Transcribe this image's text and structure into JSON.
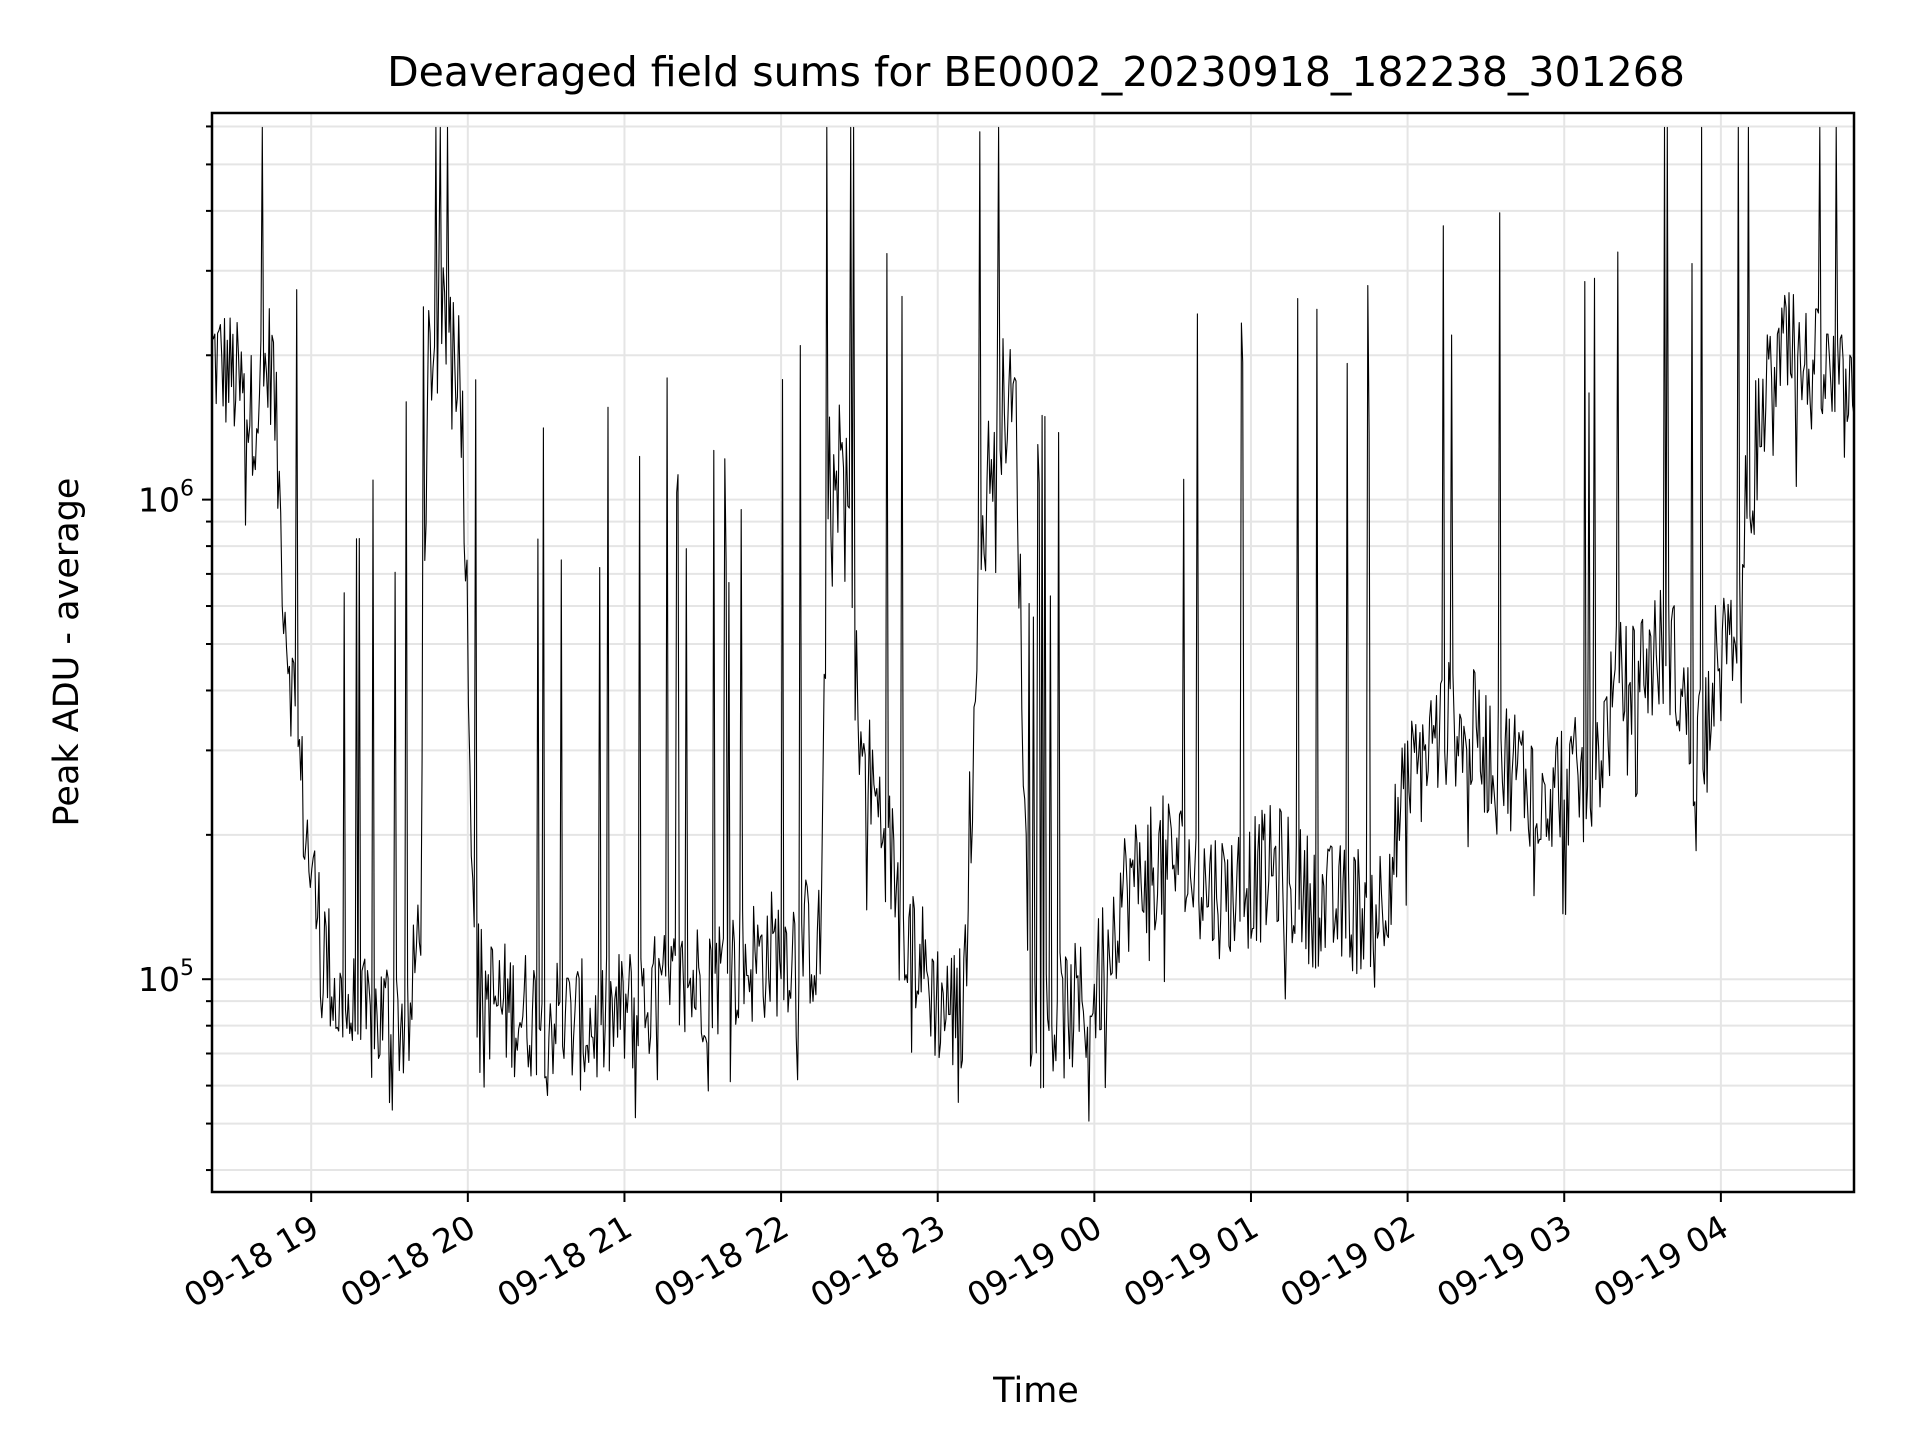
{
  "chart_data": {
    "type": "line",
    "title": "Deaveraged field sums for BE0002_20230918_182238_301268",
    "xlabel": "Time",
    "ylabel": "Peak ADU - average",
    "yscale": "log",
    "grid": true,
    "legend": "none",
    "line_color": "#000000",
    "xlim": [
      "2023-09-18 18:22",
      "2023-09-19 04:51"
    ],
    "ylim": [
      36000,
      6400000
    ],
    "x_ticks": [
      {
        "value": "2023-09-18 19:00",
        "label": "09-18 19"
      },
      {
        "value": "2023-09-18 20:00",
        "label": "09-18 20"
      },
      {
        "value": "2023-09-18 21:00",
        "label": "09-18 21"
      },
      {
        "value": "2023-09-18 22:00",
        "label": "09-18 22"
      },
      {
        "value": "2023-09-18 23:00",
        "label": "09-18 23"
      },
      {
        "value": "2023-09-19 00:00",
        "label": "09-19 00"
      },
      {
        "value": "2023-09-19 01:00",
        "label": "09-19 01"
      },
      {
        "value": "2023-09-19 02:00",
        "label": "09-19 02"
      },
      {
        "value": "2023-09-19 03:00",
        "label": "09-19 03"
      },
      {
        "value": "2023-09-19 04:00",
        "label": "09-19 04"
      }
    ],
    "y_ticks": [
      {
        "value": 100000,
        "base": "10",
        "exp": "5"
      },
      {
        "value": 1000000,
        "base": "10",
        "exp": "6"
      }
    ],
    "series": [
      {
        "name": "",
        "x": [
          "2023-09-18 18:22",
          "2023-09-18 18:30",
          "2023-09-18 18:37",
          "2023-09-18 18:45",
          "2023-09-18 18:50",
          "2023-09-18 18:55",
          "2023-09-18 18:58",
          "2023-09-18 19:03",
          "2023-09-18 19:10",
          "2023-09-18 19:20",
          "2023-09-18 19:30",
          "2023-09-18 19:38",
          "2023-09-18 19:42",
          "2023-09-18 19:45",
          "2023-09-18 19:50",
          "2023-09-18 19:55",
          "2023-09-18 19:58",
          "2023-09-18 20:03",
          "2023-09-18 20:10",
          "2023-09-18 20:20",
          "2023-09-18 20:30",
          "2023-09-18 20:40",
          "2023-09-18 20:50",
          "2023-09-18 21:00",
          "2023-09-18 21:10",
          "2023-09-18 21:20",
          "2023-09-18 21:30",
          "2023-09-18 21:40",
          "2023-09-18 21:50",
          "2023-09-18 22:00",
          "2023-09-18 22:10",
          "2023-09-18 22:15",
          "2023-09-18 22:18",
          "2023-09-18 22:25",
          "2023-09-18 22:30",
          "2023-09-18 22:35",
          "2023-09-18 22:40",
          "2023-09-18 22:50",
          "2023-09-18 23:00",
          "2023-09-18 23:10",
          "2023-09-18 23:15",
          "2023-09-18 23:20",
          "2023-09-18 23:25",
          "2023-09-18 23:30",
          "2023-09-18 23:35",
          "2023-09-18 23:40",
          "2023-09-18 23:50",
          "2023-09-19 00:00",
          "2023-09-19 00:10",
          "2023-09-19 00:20",
          "2023-09-19 00:30",
          "2023-09-19 00:40",
          "2023-09-19 00:50",
          "2023-09-19 01:00",
          "2023-09-19 01:10",
          "2023-09-19 01:20",
          "2023-09-19 01:30",
          "2023-09-19 01:40",
          "2023-09-19 01:50",
          "2023-09-19 02:00",
          "2023-09-19 02:10",
          "2023-09-19 02:20",
          "2023-09-19 02:30",
          "2023-09-19 02:40",
          "2023-09-19 02:50",
          "2023-09-19 03:00",
          "2023-09-19 03:10",
          "2023-09-19 03:20",
          "2023-09-19 03:30",
          "2023-09-19 03:40",
          "2023-09-19 03:50",
          "2023-09-19 04:00",
          "2023-09-19 04:05",
          "2023-09-19 04:10",
          "2023-09-19 04:15",
          "2023-09-19 04:20",
          "2023-09-19 04:25",
          "2023-09-19 04:30",
          "2023-09-19 04:40",
          "2023-09-19 04:51"
        ],
        "y": [
          2000000,
          1800000,
          1500000,
          2000000,
          600000,
          300000,
          200000,
          130000,
          90000,
          80000,
          85000,
          80000,
          150000,
          2000000,
          2200000,
          2500000,
          1500000,
          100000,
          90000,
          85000,
          85000,
          80000,
          80000,
          85000,
          90000,
          95000,
          100000,
          105000,
          110000,
          115000,
          120000,
          115000,
          1100000,
          1200000,
          300000,
          250000,
          200000,
          120000,
          90000,
          85000,
          600000,
          1200000,
          1600000,
          1500000,
          90000,
          80000,
          85000,
          90000,
          150000,
          170000,
          180000,
          160000,
          150000,
          160000,
          170000,
          150000,
          140000,
          140000,
          145000,
          250000,
          320000,
          350000,
          300000,
          280000,
          250000,
          260000,
          250000,
          400000,
          450000,
          500000,
          300000,
          500000,
          450000,
          1000000,
          1500000,
          1800000,
          2000000,
          1900000,
          1800000,
          1500000
        ]
      }
    ]
  }
}
